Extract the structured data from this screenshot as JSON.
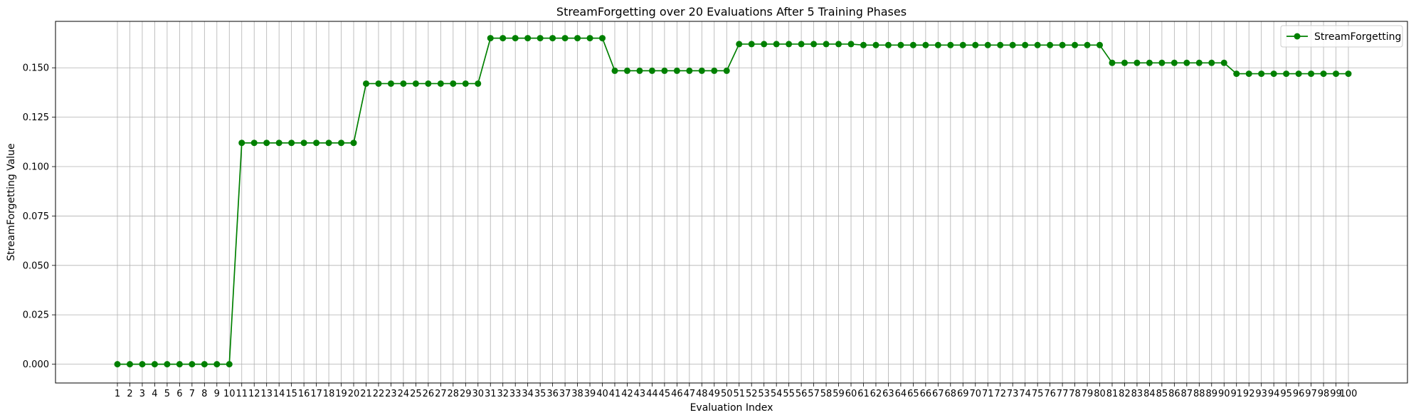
{
  "chart_data": {
    "type": "line",
    "title": "StreamForgetting over 20 Evaluations After 5 Training Phases",
    "xlabel": "Evaluation Index",
    "ylabel": "StreamForgetting Value",
    "x_categories": [
      "1",
      "2",
      "3",
      "4",
      "5",
      "6",
      "7",
      "8",
      "9",
      "10",
      "11",
      "12",
      "13",
      "14",
      "15",
      "16",
      "17",
      "18",
      "19",
      "20",
      "21",
      "22",
      "23",
      "24",
      "25",
      "26",
      "27",
      "28",
      "29",
      "30",
      "31",
      "32",
      "33",
      "34",
      "35",
      "36",
      "37",
      "38",
      "39",
      "40",
      "41",
      "42",
      "43",
      "44",
      "45",
      "46",
      "47",
      "48",
      "49",
      "50",
      "51",
      "52",
      "53",
      "54",
      "55",
      "56",
      "57",
      "58",
      "59",
      "60",
      "61",
      "62",
      "63",
      "64",
      "65",
      "66",
      "67",
      "68",
      "69",
      "70",
      "71",
      "72",
      "73",
      "74",
      "75",
      "76",
      "77",
      "78",
      "79",
      "80",
      "81",
      "82",
      "83",
      "84",
      "85",
      "86",
      "87",
      "88",
      "89",
      "90",
      "91",
      "92",
      "93",
      "94",
      "95",
      "96",
      "97",
      "98",
      "99",
      "100"
    ],
    "ylim": [
      -0.0095,
      0.1735
    ],
    "yticks": [
      0.0,
      0.025,
      0.05,
      0.075,
      0.1,
      0.125,
      0.15
    ],
    "ytick_labels": [
      "0.000",
      "0.025",
      "0.050",
      "0.075",
      "0.100",
      "0.125",
      "0.150"
    ],
    "grid": true,
    "legend_position": "upper-right",
    "series": [
      {
        "name": "StreamForgetting",
        "color": "#008000",
        "marker": "circle",
        "values": [
          0.0,
          0.0,
          0.0,
          0.0,
          0.0,
          0.0,
          0.0,
          0.0,
          0.0,
          0.0,
          0.112,
          0.112,
          0.112,
          0.112,
          0.112,
          0.112,
          0.112,
          0.112,
          0.112,
          0.112,
          0.142,
          0.142,
          0.142,
          0.142,
          0.142,
          0.142,
          0.142,
          0.142,
          0.142,
          0.142,
          0.165,
          0.165,
          0.165,
          0.165,
          0.165,
          0.165,
          0.165,
          0.165,
          0.165,
          0.165,
          0.1485,
          0.1485,
          0.1485,
          0.1485,
          0.1485,
          0.1485,
          0.1485,
          0.1485,
          0.1485,
          0.1485,
          0.162,
          0.162,
          0.162,
          0.162,
          0.162,
          0.162,
          0.162,
          0.162,
          0.162,
          0.162,
          0.1615,
          0.1615,
          0.1615,
          0.1615,
          0.1615,
          0.1615,
          0.1615,
          0.1615,
          0.1615,
          0.1615,
          0.1615,
          0.1615,
          0.1615,
          0.1615,
          0.1615,
          0.1615,
          0.1615,
          0.1615,
          0.1615,
          0.1615,
          0.1525,
          0.1525,
          0.1525,
          0.1525,
          0.1525,
          0.1525,
          0.1525,
          0.1525,
          0.1525,
          0.1525,
          0.147,
          0.147,
          0.147,
          0.147,
          0.147,
          0.147,
          0.147,
          0.147,
          0.147,
          0.147
        ]
      }
    ]
  }
}
